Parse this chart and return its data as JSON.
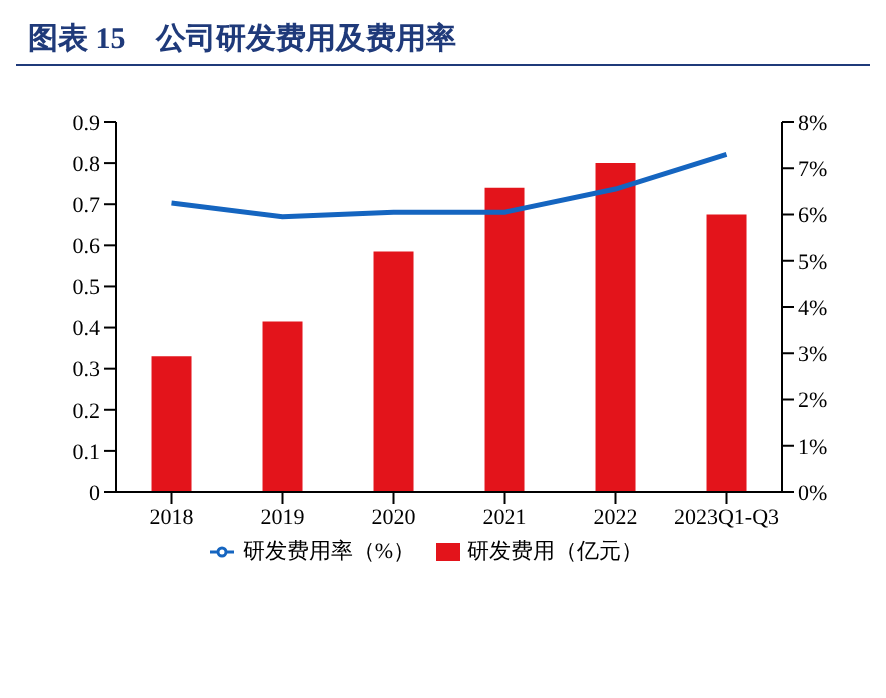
{
  "chart_data": {
    "type": "bar",
    "title": "图表 15　公司研发费用及费用率",
    "categories": [
      "2018",
      "2019",
      "2020",
      "2021",
      "2022",
      "2023Q1-Q3"
    ],
    "series": [
      {
        "name": "研发费用（亿元）",
        "color": "#e3141b",
        "values": [
          0.33,
          0.415,
          0.585,
          0.74,
          0.8,
          0.675
        ]
      },
      {
        "name": "研发费用率（%）",
        "type": "line",
        "axis": "y2",
        "color": "#1565c0",
        "values": [
          6.25,
          5.95,
          6.05,
          6.05,
          6.55,
          7.3
        ]
      }
    ],
    "ylim": [
      0,
      0.9
    ],
    "yticks": [
      0,
      0.1,
      0.2,
      0.3,
      0.4,
      0.5,
      0.6,
      0.7,
      0.8,
      0.9
    ],
    "y2lim": [
      0,
      8
    ],
    "y2ticks": [
      {
        "value": 0,
        "label": "0%"
      },
      {
        "value": 1,
        "label": "1%"
      },
      {
        "value": 2,
        "label": "2%"
      },
      {
        "value": 3,
        "label": "3%"
      },
      {
        "value": 4,
        "label": "4%"
      },
      {
        "value": 5,
        "label": "5%"
      },
      {
        "value": 6,
        "label": "6%"
      },
      {
        "value": 7,
        "label": "7%"
      },
      {
        "value": 8,
        "label": "8%"
      }
    ],
    "grid": false,
    "legend": "bottom",
    "marker": "none"
  }
}
